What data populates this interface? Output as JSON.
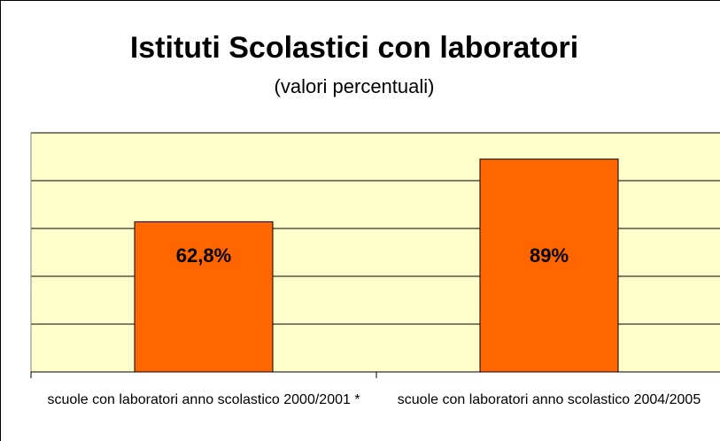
{
  "chart_data": {
    "type": "bar",
    "title": "Istituti Scolastici con laboratori",
    "subtitle": "(valori percentuali)",
    "categories": [
      "scuole con laboratori anno scolastico 2000/2001 *",
      "scuole con laboratori anno scolastico 2004/2005"
    ],
    "values": [
      62.8,
      89
    ],
    "value_labels": [
      "62,8%",
      "89%"
    ],
    "color": "#ff6600",
    "ylim": [
      0,
      100
    ],
    "yticks": [
      0,
      20,
      40,
      60,
      80,
      100
    ],
    "grid": true
  }
}
